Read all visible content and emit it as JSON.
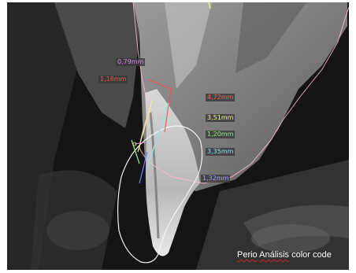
{
  "measurements": [
    {
      "label": "0,79mm",
      "color": "#d98cf2"
    },
    {
      "label": "1,18mm",
      "color": "#ff4a4a"
    },
    {
      "label": "4,72mm",
      "color": "#ff5a5a"
    },
    {
      "label": "3,51mm",
      "color": "#f2f28a"
    },
    {
      "label": "1,20mm",
      "color": "#8ef08e"
    },
    {
      "label": "3,35mm",
      "color": "#8de6e6"
    },
    {
      "label": "1,32mm",
      "color": "#9c9cff"
    }
  ],
  "caption": {
    "part1": "Perio",
    "part2": "Análisis",
    "part3": "color",
    "part4": "code"
  },
  "colors": {
    "background": "#0c0c0c",
    "outline_tissue": "#ffc0c8",
    "outline_bone": "#ffffff"
  }
}
